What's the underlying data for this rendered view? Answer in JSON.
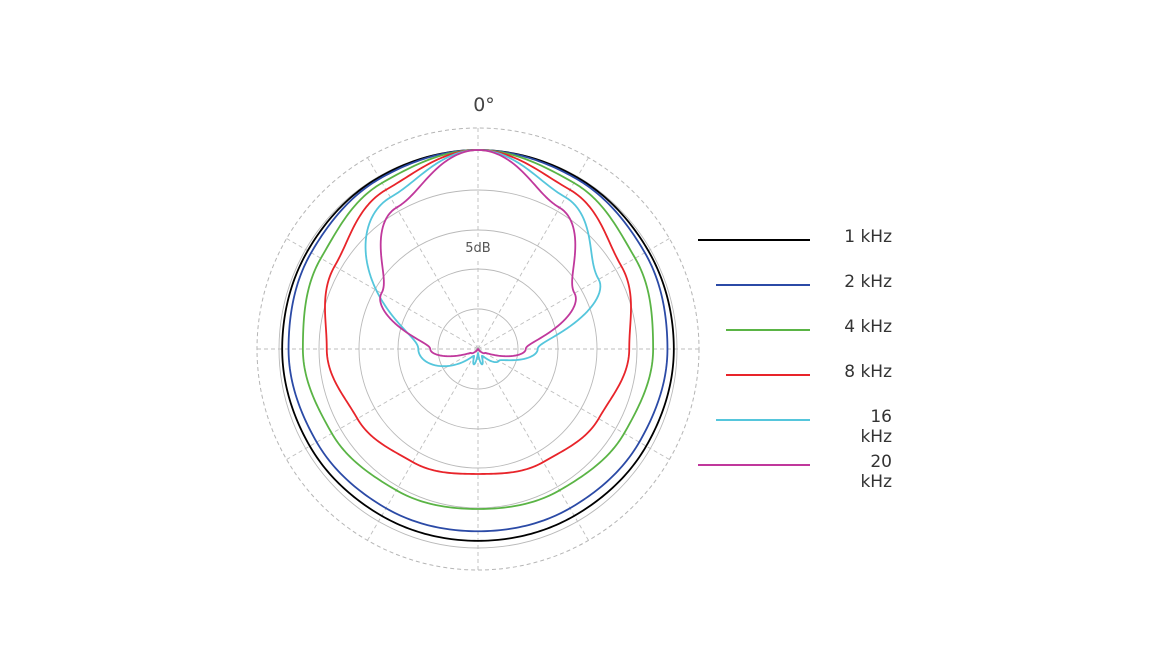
{
  "chart_data": {
    "type": "polar",
    "angle_label": "0°",
    "radial_label": "5dB",
    "grid": true,
    "legend_position": "right",
    "series": [
      {
        "name": "1 kHz",
        "color": "#000000",
        "angles": [
          0,
          30,
          60,
          90,
          120,
          150,
          180,
          210,
          240,
          270,
          300,
          330
        ],
        "values": [
          0,
          -0.1,
          -0.3,
          -0.4,
          -0.6,
          -0.8,
          -0.9,
          -0.8,
          -0.6,
          -0.4,
          -0.3,
          -0.1
        ]
      },
      {
        "name": "2 kHz",
        "color": "#2b4aa6",
        "angles": [
          0,
          30,
          60,
          90,
          120,
          150,
          180,
          210,
          240,
          270,
          300,
          330
        ],
        "values": [
          0,
          -0.3,
          -0.8,
          -1.2,
          -1.6,
          -1.9,
          -2.1,
          -1.9,
          -1.6,
          -1.2,
          -0.8,
          -0.3
        ]
      },
      {
        "name": "4 kHz",
        "color": "#5ab445",
        "angles": [
          0,
          30,
          60,
          90,
          120,
          150,
          180,
          210,
          240,
          270,
          300,
          330
        ],
        "values": [
          0,
          -0.9,
          -2.2,
          -3.0,
          -3.8,
          -4.5,
          -4.9,
          -4.5,
          -3.8,
          -3.0,
          -2.2,
          -0.9
        ]
      },
      {
        "name": "8 kHz",
        "color": "#e8242a",
        "angles": [
          0,
          30,
          60,
          90,
          120,
          150,
          180,
          210,
          240,
          270,
          300,
          330
        ],
        "values": [
          0,
          -1.9,
          -4.2,
          -6.0,
          -7.5,
          -8.6,
          -9.3,
          -8.6,
          -7.5,
          -6.0,
          -4.2,
          -1.9
        ]
      },
      {
        "name": "16 kHz",
        "color": "#55c6dc",
        "angles": [
          0,
          30,
          60,
          90,
          120,
          150,
          165,
          180,
          195,
          210,
          270,
          330
        ],
        "values": [
          0,
          -3.0,
          -7.5,
          -17.5,
          -22,
          -24,
          -23,
          -24.5,
          -23,
          -24,
          -17.5,
          -3.0
        ]
      },
      {
        "name": "20 kHz",
        "color": "#c0389c",
        "angles": [
          0,
          30,
          60,
          90,
          120,
          150,
          180,
          210,
          240,
          270,
          300,
          330
        ],
        "values": [
          0,
          -4.5,
          -11,
          -19,
          -24,
          -25,
          -25,
          -25,
          -24,
          -19,
          -11,
          -4.5
        ]
      }
    ]
  }
}
